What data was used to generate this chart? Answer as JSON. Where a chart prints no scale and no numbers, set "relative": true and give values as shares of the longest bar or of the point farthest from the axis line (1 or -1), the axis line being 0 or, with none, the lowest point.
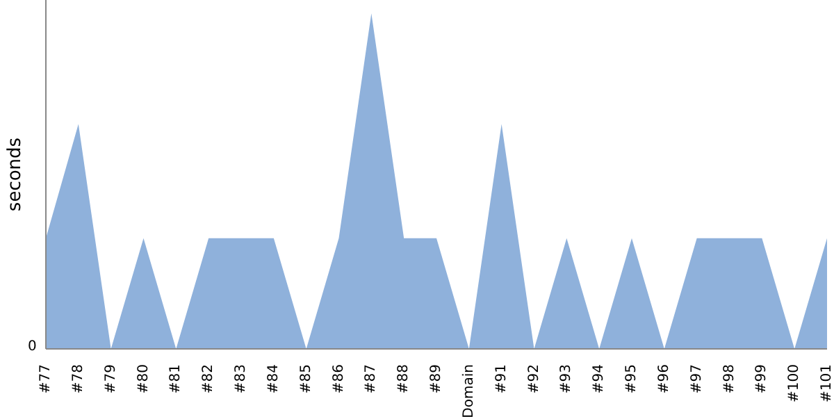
{
  "chart_data": {
    "type": "area",
    "ylabel": "seconds",
    "relative": true,
    "color": "#8fb1db",
    "annotations": [
      "0"
    ],
    "categories": [
      "#77",
      "#78",
      "#79",
      "#80",
      "#81",
      "#82",
      "#83",
      "#84",
      "#85",
      "#86",
      "#87",
      "#88",
      "#89",
      "Domain",
      "#91",
      "#92",
      "#93",
      "#94",
      "#95",
      "#96",
      "#97",
      "#98",
      "#99",
      "#100",
      "#101"
    ],
    "values": [
      0.33,
      0.67,
      0,
      0.33,
      0,
      0.33,
      0.33,
      0.33,
      0,
      0.33,
      1,
      0.33,
      0.33,
      0,
      0.67,
      0,
      0.33,
      0,
      0.33,
      0,
      0.33,
      0.33,
      0.33,
      0,
      0.33
    ]
  }
}
